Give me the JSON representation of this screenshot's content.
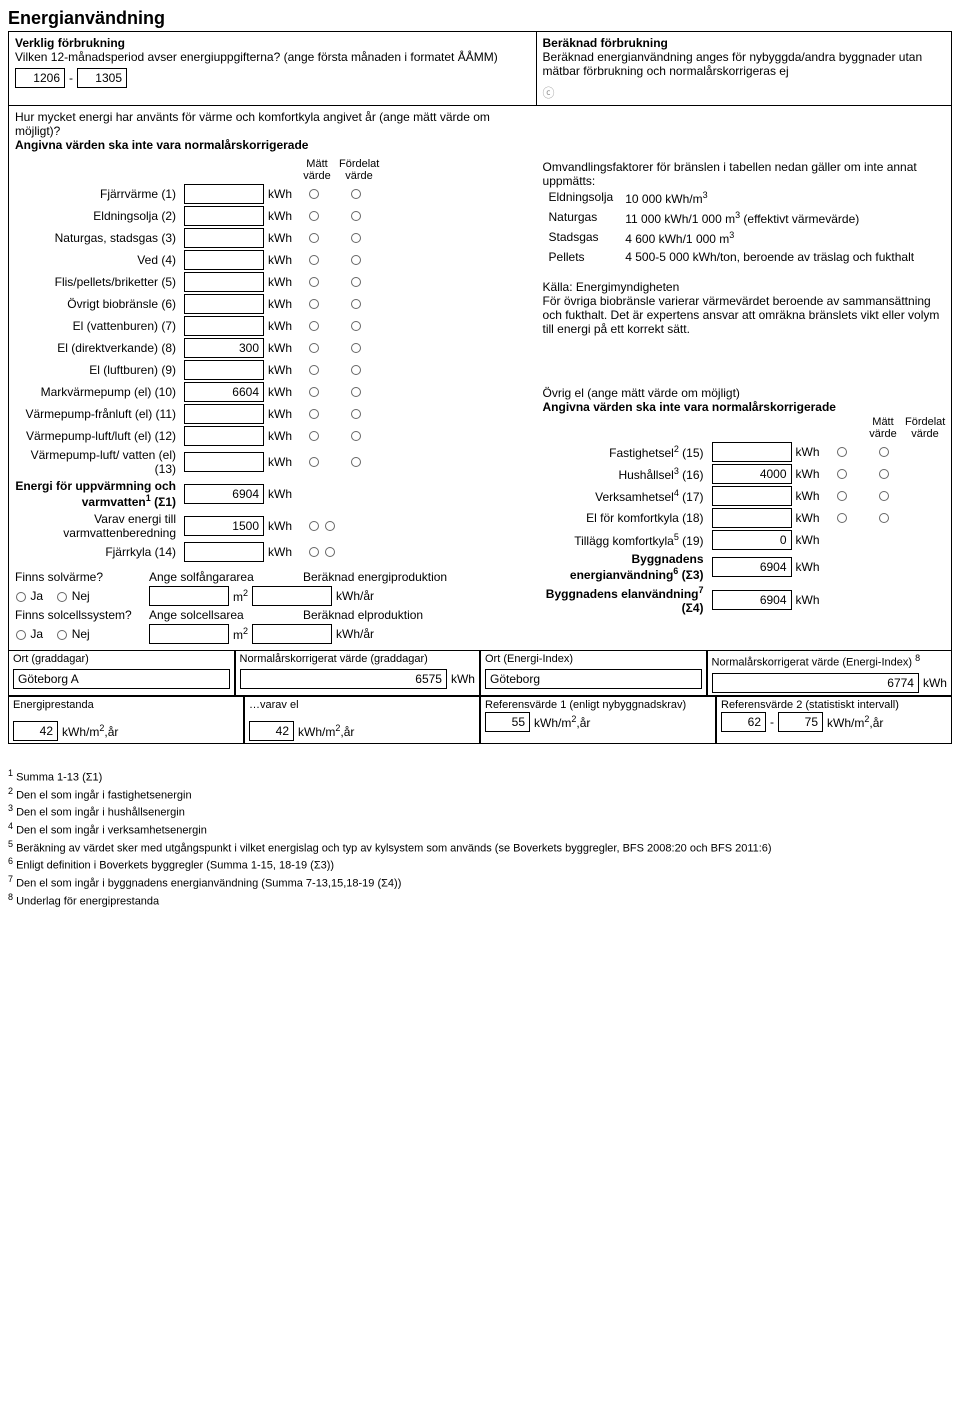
{
  "title": "Energianvändning",
  "left_header": {
    "sub": "Verklig förbrukning",
    "q": "Vilken 12-månadsperiod avser energiuppgifterna? (ange första månaden i formatet ÅÅMM)",
    "from": "1206",
    "dash": "-",
    "to": "1305",
    "heat_q": "Hur mycket energi har använts för värme och komfortkyla angivet år (ange mätt värde om möjligt)?",
    "note": "Angivna värden ska inte vara normalårskorrigerade",
    "h_matt": "Mätt värde",
    "h_ford": "Fördelat värde",
    "unit": "kWh"
  },
  "right_header": {
    "sub": "Beräknad förbrukning",
    "txt": "Beräknad energianvändning anges för nybyggda/andra byggnader utan mätbar förbrukning och normalårskorrigeras ej",
    "circ": "ⓒ"
  },
  "energy_rows": [
    {
      "label": "Fjärrvärme (1)",
      "val": ""
    },
    {
      "label": "Eldningsolja (2)",
      "val": ""
    },
    {
      "label": "Naturgas, stadsgas (3)",
      "val": ""
    },
    {
      "label": "Ved (4)",
      "val": ""
    },
    {
      "label": "Flis/pellets/briketter (5)",
      "val": ""
    },
    {
      "label": "Övrigt biobränsle (6)",
      "val": ""
    },
    {
      "label": "El (vattenburen) (7)",
      "val": ""
    },
    {
      "label": "El (direktverkande) (8)",
      "val": "300"
    },
    {
      "label": "El (luftburen) (9)",
      "val": ""
    },
    {
      "label": "Markvärmepump (el) (10)",
      "val": "6604"
    },
    {
      "label": "Värmepump-frånluft (el) (11)",
      "val": ""
    },
    {
      "label": "Värmepump-luft/luft (el) (12)",
      "val": ""
    },
    {
      "label": "Värmepump-luft/ vatten (el) (13)",
      "val": ""
    }
  ],
  "sum_rows": {
    "sigma1_lbl": "Energi för uppvärmning och varmvatten",
    "sigma1_sup": "1",
    "sigma1_suf": "(Σ1)",
    "sigma1_val": "6904",
    "varav_lbl": "Varav energi till varmvattenberedning",
    "varav_val": "1500",
    "fjarr_lbl": "Fjärrkyla (14)",
    "fjarr_val": ""
  },
  "fuel": {
    "intro": "Omvandlingsfaktorer för bränslen i tabellen nedan gäller om inte annat uppmätts:",
    "rows": [
      [
        "Eldningsolja",
        "10 000 kWh/m",
        "3",
        ""
      ],
      [
        "Naturgas",
        "11 000 kWh/1 000 m",
        "3",
        " (effektivt värmevärde)"
      ],
      [
        "Stadsgas",
        "4 600 kWh/1 000 m",
        "3",
        ""
      ],
      [
        "Pellets",
        "4 500-5 000 kWh/ton, beroende av träslag och fukthalt",
        "",
        ""
      ]
    ],
    "source": "Källa: Energimyndigheten",
    "note": "För övriga biobränsle varierar värmevärdet beroende av sammansättning och fukthalt. Det är expertens ansvar att omräkna bränslets vikt eller volym till energi på ett korrekt sätt."
  },
  "ovrig": {
    "title": "Övrig el (ange mätt värde om möjligt)",
    "note": "Angivna värden ska inte vara normalårskorrigerade",
    "h_matt": "Mätt värde",
    "h_ford": "Fördelat värde",
    "rows": [
      {
        "lbl": "Fastighetsel",
        "sup": "2",
        "suf": " (15)",
        "val": ""
      },
      {
        "lbl": "Hushållsel",
        "sup": "3",
        "suf": " (16)",
        "val": "4000"
      },
      {
        "lbl": "Verksamhetsel",
        "sup": "4",
        "suf": " (17)",
        "val": ""
      },
      {
        "lbl": "El för komfortkyla (18)",
        "sup": "",
        "suf": "",
        "val": ""
      }
    ],
    "tillagg": {
      "lbl": "Tillägg komfortkyla",
      "sup": "5",
      "suf": " (19)",
      "val": "0"
    },
    "sigma3": {
      "lbl": "Byggnadens energianvändning",
      "sup": "6",
      "suf": " (Σ3)",
      "val": "6904"
    },
    "sigma4": {
      "lbl": "Byggnadens elanvändning",
      "sup": "7",
      "suf": " (Σ4)",
      "val": "6904"
    }
  },
  "solar": {
    "q1": "Finns solvärme?",
    "ja": "Ja",
    "nej": "Nej",
    "area_lbl": "Ange solfångararea",
    "m2": "m",
    "m2sup": "2",
    "prod_lbl": "Beräknad energiproduktion",
    "unit": "kWh/år",
    "q2": "Finns solcellssystem?",
    "area2_lbl": "Ange solcellsarea",
    "prod2_lbl": "Beräknad elproduktion"
  },
  "bottom": {
    "ort_gd_lbl": "Ort (graddagar)",
    "ort_gd_val": "Göteborg A",
    "norm_gd_lbl": "Normalårskorrigerat värde (graddagar)",
    "norm_gd_val": "6575",
    "ort_ei_lbl": "Ort (Energi-Index)",
    "ort_ei_val": "Göteborg",
    "norm_ei_lbl": "Normalårskorrigerat värde (Energi-Index)",
    "norm_ei_sup": "8",
    "norm_ei_val": "6774",
    "ep_lbl": "Energiprestanda",
    "ep_val": "42",
    "varavel_lbl": "…varav el",
    "varavel_val": "42",
    "ref1_lbl": "Referensvärde 1 (enligt nybyggnadskrav)",
    "ref1_val": "55",
    "ref2_lbl": "Referensvärde 2 (statistiskt intervall)",
    "ref2_from": "62",
    "ref2_dash": "-",
    "ref2_to": "75",
    "unit": "kWh/m",
    "sup": "2",
    "suf": ",år",
    "kwh": "kWh"
  },
  "footnotes": [
    "Summa 1-13 (Σ1)",
    "Den el som ingår i fastighetsenergin",
    "Den el som ingår i hushållsenergin",
    "Den el som ingår i verksamhetsenergin",
    "Beräkning av värdet sker med utgångspunkt i vilket energislag och typ av kylsystem som används (se Boverkets byggregler, BFS 2008:20 och BFS 2011:6)",
    "Enligt definition i Boverkets byggregler (Summa 1-15, 18-19 (Σ3))",
    "Den el som ingår i byggnadens energianvändning (Summa 7-13,15,18-19 (Σ4))",
    "Underlag för energiprestanda"
  ]
}
